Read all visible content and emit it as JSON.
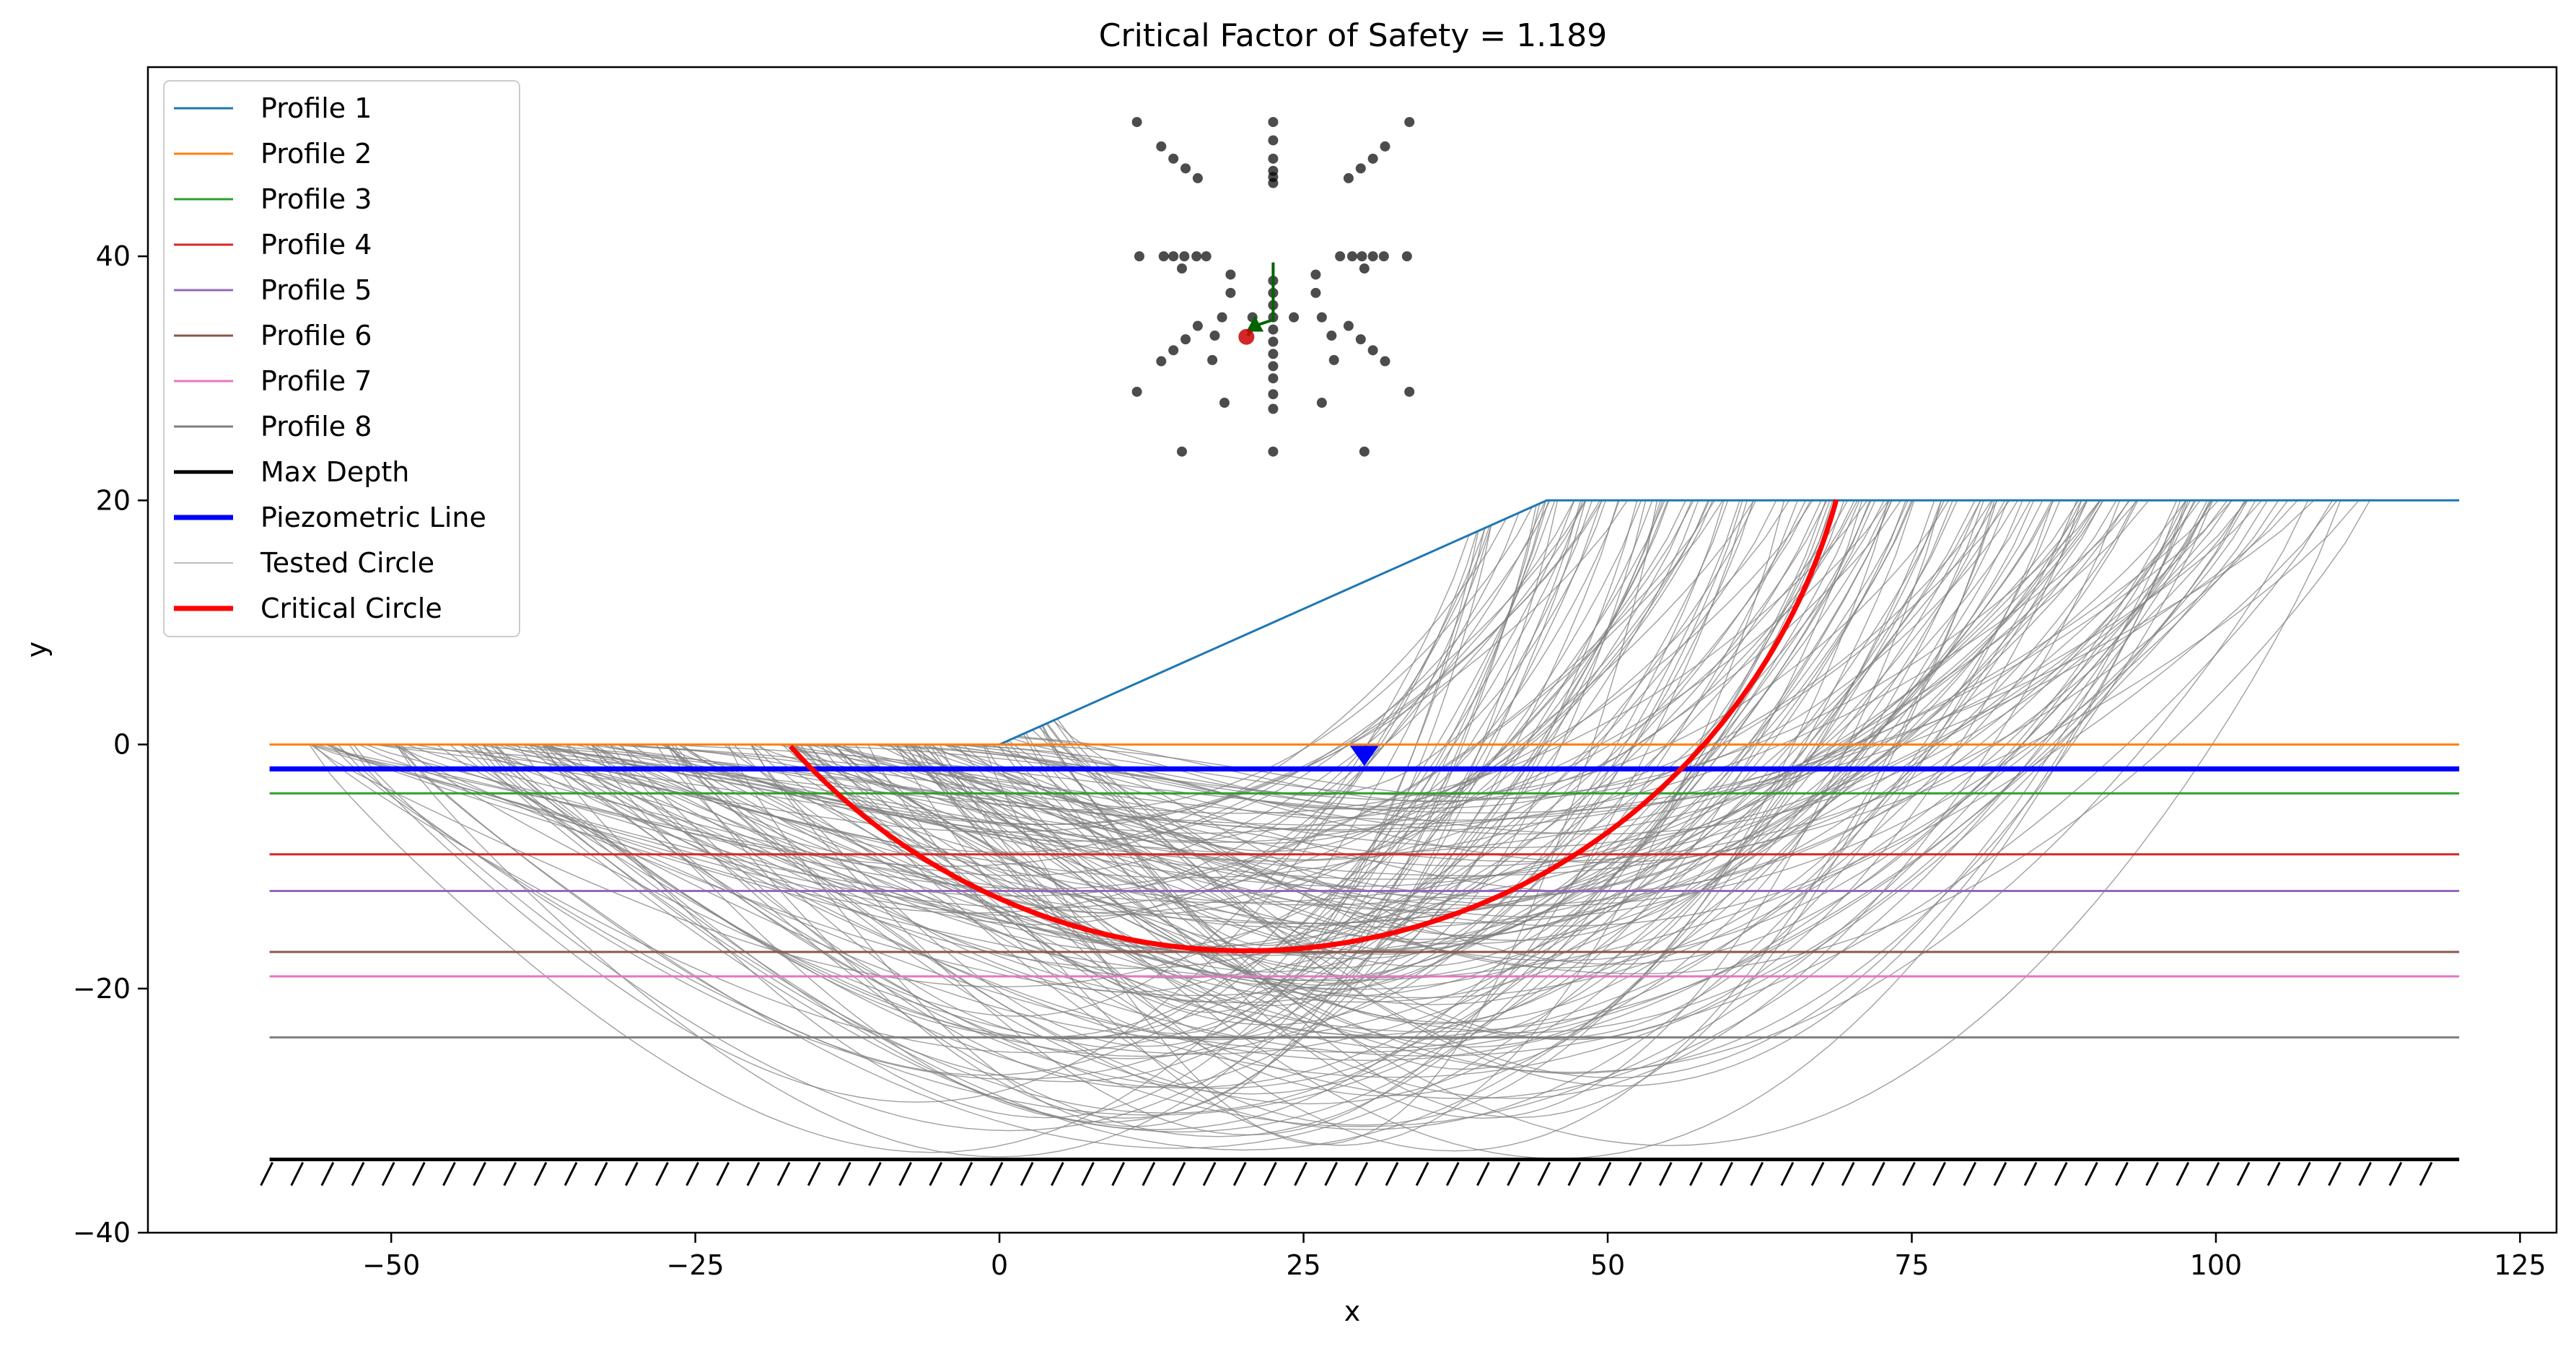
{
  "chart_data": {
    "type": "line",
    "title": "Critical Factor of Safety = 1.189",
    "xlabel": "x",
    "ylabel": "y",
    "xlim": [
      -70,
      128
    ],
    "ylim": [
      -40,
      55.5
    ],
    "x_ticks": [
      -50,
      -25,
      0,
      25,
      50,
      75,
      100,
      125
    ],
    "x_tick_labels": [
      "−50",
      "−25",
      "0",
      "25",
      "50",
      "75",
      "100",
      "125"
    ],
    "y_ticks": [
      -40,
      -20,
      0,
      20,
      40
    ],
    "y_tick_labels": [
      "−40",
      "−20",
      "0",
      "20",
      "40"
    ],
    "grid": false,
    "legend_position": "upper left",
    "legend": [
      {
        "label": "Profile 1",
        "color": "#1f77b4",
        "width": 1.5
      },
      {
        "label": "Profile 2",
        "color": "#ff7f0e",
        "width": 1.5
      },
      {
        "label": "Profile 3",
        "color": "#2ca02c",
        "width": 1.5
      },
      {
        "label": "Profile 4",
        "color": "#d62728",
        "width": 1.5
      },
      {
        "label": "Profile 5",
        "color": "#9467bd",
        "width": 1.5
      },
      {
        "label": "Profile 6",
        "color": "#8c564b",
        "width": 1.5
      },
      {
        "label": "Profile 7",
        "color": "#e377c2",
        "width": 1.5
      },
      {
        "label": "Profile 8",
        "color": "#7f7f7f",
        "width": 1.5
      },
      {
        "label": "Max Depth",
        "color": "#000000",
        "width": 2.5
      },
      {
        "label": "Piezometric Line",
        "color": "#0000ff",
        "width": 3.5
      },
      {
        "label": "Tested Circle",
        "color": "#bdbdbd",
        "width": 1
      },
      {
        "label": "Critical Circle",
        "color": "#ff0000",
        "width": 3.5
      }
    ],
    "profiles": [
      {
        "name": "Profile 1",
        "color": "#1f77b4",
        "points": [
          [
            0,
            0
          ],
          [
            45,
            20
          ],
          [
            120,
            20
          ]
        ]
      },
      {
        "name": "Profile 2",
        "color": "#ff7f0e",
        "points": [
          [
            -60,
            0
          ],
          [
            120,
            0
          ]
        ]
      },
      {
        "name": "Profile 3",
        "color": "#2ca02c",
        "points": [
          [
            -60,
            -4
          ],
          [
            120,
            -4
          ]
        ]
      },
      {
        "name": "Profile 4",
        "color": "#d62728",
        "points": [
          [
            -60,
            -9
          ],
          [
            120,
            -9
          ]
        ]
      },
      {
        "name": "Profile 5",
        "color": "#9467bd",
        "points": [
          [
            -60,
            -12
          ],
          [
            120,
            -12
          ]
        ]
      },
      {
        "name": "Profile 6",
        "color": "#8c564b",
        "points": [
          [
            -60,
            -17
          ],
          [
            120,
            -17
          ]
        ]
      },
      {
        "name": "Profile 7",
        "color": "#e377c2",
        "points": [
          [
            -60,
            -19
          ],
          [
            120,
            -19
          ]
        ]
      },
      {
        "name": "Profile 8",
        "color": "#7f7f7f",
        "points": [
          [
            -60,
            -24
          ],
          [
            120,
            -24
          ]
        ]
      }
    ],
    "max_depth": {
      "y": -34,
      "x_range": [
        -60,
        120
      ],
      "color": "#000000"
    },
    "piezometric_line": {
      "points": [
        [
          -60,
          -2
        ],
        [
          120,
          -2
        ]
      ],
      "color": "#0000ff",
      "marker_x": 30
    },
    "tested_circles": {
      "color": "#808080",
      "count": 180,
      "x_start_range": [
        -57,
        5
      ],
      "x_end_range": [
        38,
        113
      ],
      "depth_range": [
        -4,
        -34
      ]
    },
    "critical_circle": {
      "center": [
        20.3,
        33.4
      ],
      "radius": 50.3,
      "x_entry": -17,
      "x_exit": 69,
      "y_bottom": -17,
      "color": "#ff0000"
    },
    "search_grid": {
      "center": [
        22.5,
        33.5
      ],
      "color": "#000000",
      "points": [
        [
          22.5,
          51
        ],
        [
          22.5,
          49.5
        ],
        [
          22.5,
          48
        ],
        [
          22.5,
          47
        ],
        [
          22.5,
          46.5
        ],
        [
          22.5,
          46
        ],
        [
          11.3,
          51
        ],
        [
          13.3,
          49
        ],
        [
          14.3,
          48
        ],
        [
          15.3,
          47.2
        ],
        [
          16.3,
          46.4
        ],
        [
          33.7,
          51
        ],
        [
          31.7,
          49
        ],
        [
          30.7,
          48
        ],
        [
          29.7,
          47.2
        ],
        [
          28.7,
          46.4
        ],
        [
          11.5,
          40
        ],
        [
          13.5,
          40
        ],
        [
          14.3,
          40
        ],
        [
          15.2,
          40
        ],
        [
          16.2,
          40
        ],
        [
          17,
          40
        ],
        [
          15,
          39
        ],
        [
          28,
          40
        ],
        [
          29,
          40
        ],
        [
          29.8,
          40
        ],
        [
          30.7,
          40
        ],
        [
          31.6,
          40
        ],
        [
          33.5,
          40
        ],
        [
          30,
          39
        ],
        [
          22.5,
          38
        ],
        [
          22.5,
          37
        ],
        [
          22.5,
          36
        ],
        [
          22.5,
          35
        ],
        [
          22.5,
          34
        ],
        [
          22.5,
          33
        ],
        [
          22.5,
          32
        ],
        [
          22.5,
          31
        ],
        [
          22.5,
          30
        ],
        [
          22.5,
          28.7
        ],
        [
          22.5,
          27.5
        ],
        [
          22.5,
          24
        ],
        [
          19,
          37
        ],
        [
          26,
          37
        ],
        [
          18.3,
          35
        ],
        [
          26.5,
          35
        ],
        [
          17.5,
          31.5
        ],
        [
          27.5,
          31.5
        ],
        [
          17.7,
          33.5
        ],
        [
          27.3,
          33.5
        ],
        [
          19,
          38.5
        ],
        [
          26,
          38.5
        ],
        [
          20.8,
          35
        ],
        [
          24.2,
          35
        ],
        [
          16.3,
          34.3
        ],
        [
          15.3,
          33.2
        ],
        [
          14.3,
          32.3
        ],
        [
          13.3,
          31.4
        ],
        [
          11.3,
          28.9
        ],
        [
          28.7,
          34.3
        ],
        [
          29.7,
          33.2
        ],
        [
          30.7,
          32.3
        ],
        [
          31.7,
          31.4
        ],
        [
          33.7,
          28.9
        ],
        [
          18.5,
          28
        ],
        [
          26.5,
          28
        ],
        [
          15,
          24
        ],
        [
          30,
          24
        ]
      ],
      "best_center": [
        20.3,
        33.4
      ],
      "best_color": "#cc0000",
      "search_path": [
        [
          22.5,
          39.5
        ],
        [
          22.5,
          34.8
        ],
        [
          21,
          34.3
        ],
        [
          20.4,
          33.5
        ]
      ],
      "path_color": "#006400"
    }
  }
}
